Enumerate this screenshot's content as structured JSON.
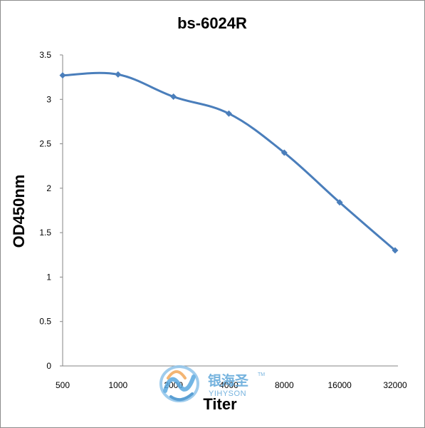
{
  "chart_data": {
    "type": "line",
    "title": "bs-6024R",
    "xlabel": "Titer",
    "ylabel": "OD450nm",
    "categories": [
      "500",
      "1000",
      "2000",
      "4000",
      "8000",
      "16000",
      "32000"
    ],
    "series": [
      {
        "values": [
          3.27,
          3.28,
          3.03,
          2.84,
          2.4,
          1.84,
          1.3
        ]
      }
    ],
    "ylim": [
      0,
      3.5
    ],
    "yticks": [
      "0",
      "0.5",
      "1",
      "1.5",
      "2",
      "2.5",
      "3",
      "3.5"
    ],
    "grid": false,
    "legend": "none",
    "marker": "diamond",
    "line_color": "#4a7ebb"
  },
  "watermark": {
    "name_cn": "银海圣",
    "name_en": "YIHYSON",
    "tm": "TM"
  }
}
